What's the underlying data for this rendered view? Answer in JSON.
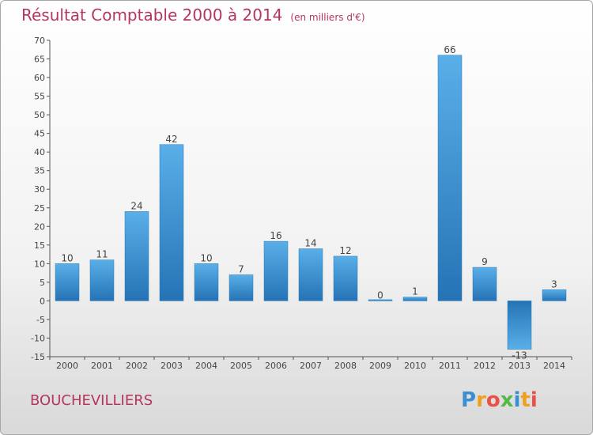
{
  "header": {
    "title": "Résultat Comptable 2000 à 2014",
    "unit": "(en milliers d'€)"
  },
  "footer": {
    "commune": "BOUCHEVILLIERS",
    "logo": [
      "P",
      "r",
      "o",
      "x",
      "i",
      "t",
      "i"
    ]
  },
  "colors": {
    "title": "#b5365d",
    "bar_light": "#5aafe8",
    "bar_dark": "#2573b5"
  },
  "chart_data": {
    "type": "bar",
    "title": "Résultat Comptable 2000 à 2014",
    "subtitle": "(en milliers d'€)",
    "categories": [
      "2000",
      "2001",
      "2002",
      "2003",
      "2004",
      "2005",
      "2006",
      "2007",
      "2008",
      "2009",
      "2010",
      "2011",
      "2012",
      "2013",
      "2014"
    ],
    "values": [
      10,
      11,
      24,
      42,
      10,
      7,
      16,
      14,
      12,
      0,
      1,
      66,
      9,
      -13,
      3
    ],
    "value_labels": [
      "10",
      "11",
      "24",
      "42",
      "10",
      "7",
      "16",
      "14",
      "12",
      "0",
      "1",
      "66",
      "9",
      "-13",
      "3"
    ],
    "ylim": [
      -15,
      70
    ],
    "yticks": [
      "-15",
      "-10",
      "-5",
      "0",
      "5",
      "10",
      "15",
      "20",
      "25",
      "30",
      "35",
      "40",
      "45",
      "50",
      "55",
      "60",
      "65",
      "70"
    ],
    "grid": false
  }
}
